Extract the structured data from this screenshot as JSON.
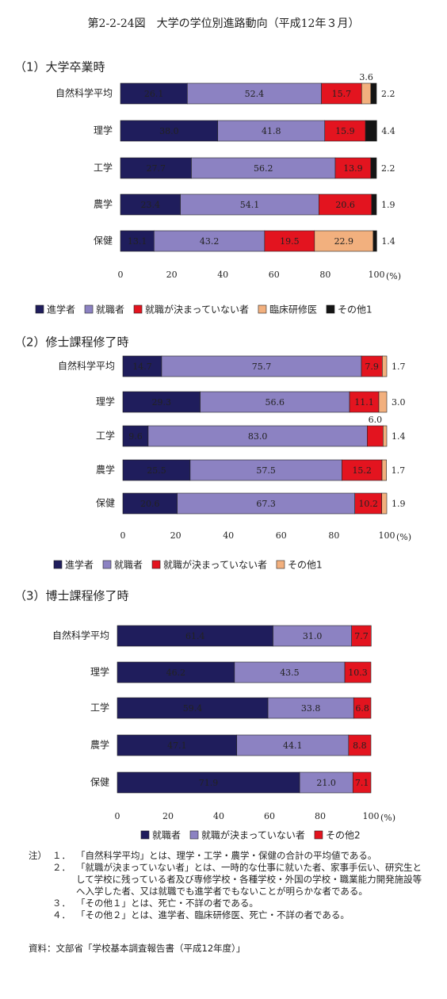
{
  "title": "第2-2-24図　大学の学位別進路動向（平成12年３月）",
  "chart_data": [
    {
      "type": "bar",
      "orientation": "horizontal",
      "stacked": true,
      "title": "（1）大学卒業時",
      "categories": [
        "自然科学平均",
        "理学",
        "工学",
        "農学",
        "保健"
      ],
      "series": [
        {
          "name": "進学者",
          "color": "#1f1d5c",
          "values": [
            26.1,
            38.0,
            27.7,
            23.4,
            13.1
          ],
          "value_labels": [
            "26.1",
            "38.0",
            "27.7",
            "23.4",
            "13.1"
          ]
        },
        {
          "name": "就職者",
          "color": "#8c82c2",
          "values": [
            52.4,
            41.8,
            56.2,
            54.1,
            43.2
          ],
          "value_labels": [
            "52.4",
            "41.8",
            "56.2",
            "54.1",
            "43.2"
          ]
        },
        {
          "name": "就職が決まっていない者",
          "color": "#e3141f",
          "values": [
            15.7,
            15.9,
            13.9,
            20.6,
            19.5
          ],
          "value_labels": [
            "15.7",
            "15.9",
            "13.9",
            "20.6",
            "19.5"
          ]
        },
        {
          "name": "臨床研修医",
          "color": "#f2b07e",
          "values": [
            3.6,
            null,
            null,
            null,
            22.9
          ],
          "value_labels": [
            "3.6",
            null,
            null,
            null,
            "22.9"
          ]
        },
        {
          "name": "その他1",
          "color": "#141414",
          "values": [
            2.2,
            4.4,
            2.2,
            1.9,
            1.4
          ],
          "value_labels": [
            "2.2",
            "4.4",
            "2.2",
            "1.9",
            "1.4"
          ]
        }
      ],
      "xlim": [
        0,
        100
      ],
      "xticks": [
        0,
        20,
        40,
        60,
        80,
        100
      ],
      "x_unit": "(%)"
    },
    {
      "type": "bar",
      "orientation": "horizontal",
      "stacked": true,
      "title": "（2）修士課程修了時",
      "categories": [
        "自然科学平均",
        "理学",
        "工学",
        "農学",
        "保健"
      ],
      "series": [
        {
          "name": "進学者",
          "color": "#1f1d5c",
          "values": [
            14.7,
            29.3,
            9.6,
            25.5,
            20.6
          ],
          "value_labels": [
            "14.7",
            "29.3",
            "9.6",
            "25.5",
            "20.6"
          ]
        },
        {
          "name": "就職者",
          "color": "#8c82c2",
          "values": [
            75.7,
            56.6,
            83.0,
            57.5,
            67.3
          ],
          "value_labels": [
            "75.7",
            "56.6",
            "83.0",
            "57.5",
            "67.3"
          ]
        },
        {
          "name": "就職が決まっていない者",
          "color": "#e3141f",
          "values": [
            7.9,
            11.1,
            6.0,
            15.2,
            10.2
          ],
          "value_labels": [
            "7.9",
            "11.1",
            "6.0",
            "15.2",
            "10.2"
          ]
        },
        {
          "name": "その他1",
          "color": "#f2b07e",
          "values": [
            1.7,
            3.0,
            1.4,
            1.7,
            1.9
          ],
          "value_labels": [
            "1.7",
            "3.0",
            "1.4",
            "1.7",
            "1.9"
          ]
        }
      ],
      "xlim": [
        0,
        100
      ],
      "xticks": [
        0,
        20,
        40,
        60,
        80,
        100
      ],
      "x_unit": "(%)"
    },
    {
      "type": "bar",
      "orientation": "horizontal",
      "stacked": true,
      "title": "（3）博士課程修了時",
      "categories": [
        "自然科学平均",
        "理学",
        "工学",
        "農学",
        "保健"
      ],
      "series": [
        {
          "name": "就職者",
          "color": "#1f1d5c",
          "values": [
            61.4,
            46.2,
            59.4,
            47.1,
            71.9
          ],
          "value_labels": [
            "61.4",
            "46.2",
            "59.4",
            "47.1",
            "71.9"
          ]
        },
        {
          "name": "就職が決まっていない者",
          "color": "#8c82c2",
          "values": [
            31.0,
            43.5,
            33.8,
            44.1,
            21.0
          ],
          "value_labels": [
            "31.0",
            "43.5",
            "33.8",
            "44.1",
            "21.0"
          ]
        },
        {
          "name": "その他2",
          "color": "#e3141f",
          "values": [
            7.7,
            10.3,
            6.8,
            8.8,
            7.1
          ],
          "value_labels": [
            "7.7",
            "10.3",
            "6.8",
            "8.8",
            "7.1"
          ]
        }
      ],
      "xlim": [
        0,
        100
      ],
      "xticks": [
        0,
        20,
        40,
        60,
        80,
        100
      ],
      "x_unit": "(%)"
    }
  ],
  "notes": {
    "label": "注）",
    "items": [
      {
        "number": "１．",
        "text": "「自然科学平均」とは、理学・工学・農学・保健の合計の平均値である。"
      },
      {
        "number": "２．",
        "text": "「就職が決まっていない者」とは、一時的な仕事に就いた者、家事手伝い、研究生として学校に残っている者及び専修学校・各種学校・外国の学校・職業能力開発施設等へ入学した者、又は就職でも進学者でもないことが明らかな者である。"
      },
      {
        "number": "３．",
        "text": "「その他１」とは、死亡・不詳の者である。"
      },
      {
        "number": "４．",
        "text": "「その他２」とは、進学者、臨床研修医、死亡・不詳の者である。"
      }
    ]
  },
  "source": "資料：文部省「学校基本調査報告書（平成12年度）」"
}
